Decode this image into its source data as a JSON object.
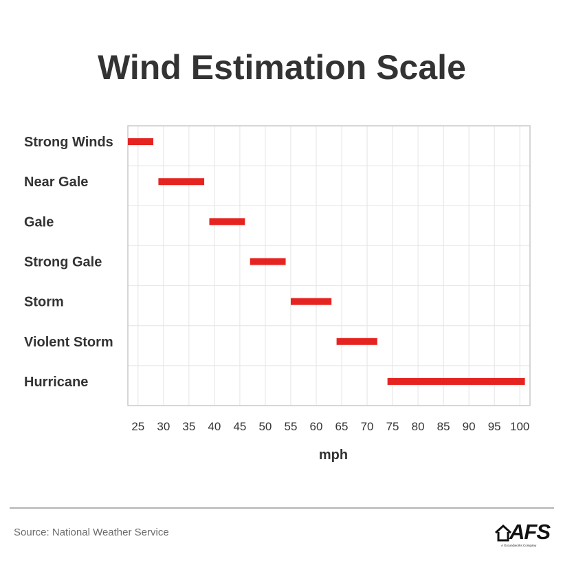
{
  "chart_data": {
    "type": "bar",
    "orientation": "horizontal-range",
    "title": "Wind Estimation Scale",
    "xlabel": "mph",
    "ylabel": "",
    "xlim": [
      23,
      102
    ],
    "xticks": [
      25,
      30,
      35,
      40,
      45,
      50,
      55,
      60,
      65,
      70,
      75,
      80,
      85,
      90,
      95,
      100
    ],
    "grid": true,
    "bar_color": "#e52421",
    "categories": [
      "Strong Winds",
      "Near Gale",
      "Gale",
      "Strong Gale",
      "Storm",
      "Violent Storm",
      "Hurricane"
    ],
    "ranges": [
      [
        23,
        28
      ],
      [
        29,
        38
      ],
      [
        39,
        46
      ],
      [
        47,
        54
      ],
      [
        55,
        63
      ],
      [
        64,
        72
      ],
      [
        74,
        101
      ]
    ]
  },
  "footer": {
    "source": "Source: National Weather Service",
    "logo_text": "AFS",
    "logo_tagline": "A Groundworks Company"
  }
}
